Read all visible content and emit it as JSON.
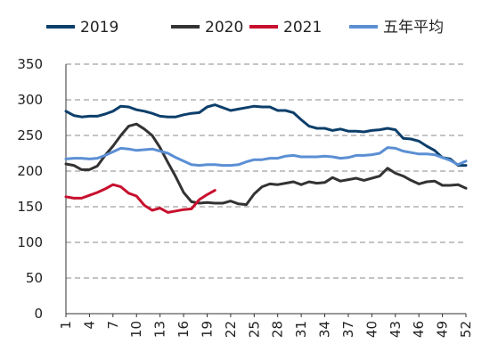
{
  "chart_data": {
    "type": "line",
    "title": "",
    "xlabel": "",
    "ylabel": "",
    "ylim": [
      0,
      350
    ],
    "yticks": [
      0,
      50,
      100,
      150,
      200,
      250,
      300,
      350
    ],
    "xticks": [
      1,
      4,
      7,
      10,
      13,
      16,
      19,
      22,
      25,
      28,
      31,
      34,
      37,
      40,
      43,
      46,
      49,
      52
    ],
    "grid": "horizontal-dashed",
    "legend_position": "top",
    "series": [
      {
        "name": "2019",
        "color": "#0d3f6b",
        "x": [
          1,
          2,
          3,
          4,
          5,
          6,
          7,
          8,
          9,
          10,
          11,
          12,
          13,
          14,
          15,
          16,
          17,
          18,
          19,
          20,
          21,
          22,
          23,
          24,
          25,
          26,
          27,
          28,
          29,
          30,
          31,
          32,
          33,
          34,
          35,
          36,
          37,
          38,
          39,
          40,
          41,
          42,
          43,
          44,
          45,
          46,
          47,
          48,
          49,
          50,
          51,
          52
        ],
        "values": [
          284,
          278,
          276,
          277,
          277,
          280,
          284,
          291,
          290,
          286,
          284,
          281,
          277,
          276,
          276,
          279,
          281,
          282,
          290,
          293,
          289,
          285,
          287,
          289,
          291,
          290,
          290,
          285,
          285,
          282,
          272,
          263,
          260,
          260,
          257,
          259,
          256,
          256,
          255,
          257,
          258,
          260,
          258,
          246,
          245,
          242,
          235,
          229,
          219,
          217,
          208,
          208
        ]
      },
      {
        "name": "2020",
        "color": "#333333",
        "x": [
          1,
          2,
          3,
          4,
          5,
          6,
          7,
          8,
          9,
          10,
          11,
          12,
          13,
          14,
          15,
          16,
          17,
          18,
          19,
          20,
          21,
          22,
          23,
          24,
          25,
          26,
          27,
          28,
          29,
          30,
          31,
          32,
          33,
          34,
          35,
          36,
          37,
          38,
          39,
          40,
          41,
          42,
          43,
          44,
          45,
          46,
          47,
          48,
          49,
          50,
          51,
          52
        ],
        "values": [
          210,
          208,
          202,
          202,
          207,
          222,
          235,
          250,
          263,
          266,
          259,
          250,
          233,
          212,
          192,
          170,
          157,
          155,
          156,
          155,
          155,
          158,
          154,
          153,
          168,
          178,
          182,
          181,
          183,
          185,
          181,
          185,
          183,
          184,
          191,
          186,
          188,
          190,
          187,
          190,
          193,
          204,
          197,
          193,
          187,
          182,
          185,
          186,
          180,
          180,
          181,
          176
        ]
      },
      {
        "name": "2021",
        "color": "#c8102e",
        "x": [
          1,
          2,
          3,
          4,
          5,
          6,
          7,
          8,
          9,
          10,
          11,
          12,
          13,
          14,
          15,
          16,
          17,
          18,
          19,
          20
        ],
        "values": [
          164,
          162,
          162,
          166,
          170,
          175,
          181,
          178,
          169,
          165,
          152,
          145,
          148,
          142,
          144,
          146,
          147,
          160,
          167,
          173
        ]
      },
      {
        "name": "五年平均",
        "color": "#5b8fd4",
        "x": [
          1,
          2,
          3,
          4,
          5,
          6,
          7,
          8,
          9,
          10,
          11,
          12,
          13,
          14,
          15,
          16,
          17,
          18,
          19,
          20,
          21,
          22,
          23,
          24,
          25,
          26,
          27,
          28,
          29,
          30,
          31,
          32,
          33,
          34,
          35,
          36,
          37,
          38,
          39,
          40,
          41,
          42,
          43,
          44,
          45,
          46,
          47,
          48,
          49,
          50,
          51,
          52
        ],
        "values": [
          217,
          218,
          218,
          217,
          218,
          222,
          227,
          232,
          231,
          229,
          230,
          231,
          228,
          225,
          219,
          214,
          209,
          208,
          209,
          209,
          208,
          208,
          209,
          213,
          216,
          216,
          218,
          218,
          221,
          222,
          220,
          220,
          220,
          221,
          220,
          218,
          219,
          222,
          222,
          223,
          225,
          233,
          232,
          228,
          226,
          224,
          224,
          223,
          219,
          215,
          209,
          214
        ]
      }
    ]
  }
}
